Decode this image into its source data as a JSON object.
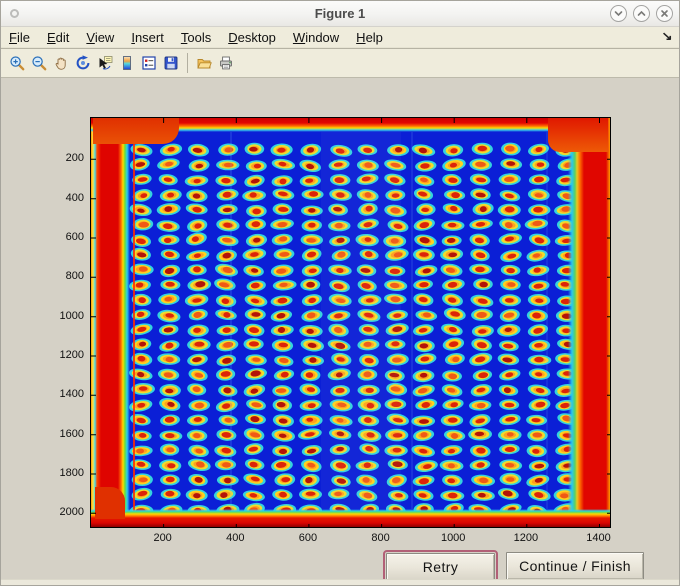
{
  "window": {
    "title": "Figure 1",
    "controls": {
      "menu": "window-menu",
      "minimize": "chevron-down",
      "maximize": "chevron-up",
      "close": "x"
    }
  },
  "menubar": {
    "items": [
      {
        "label": "File"
      },
      {
        "label": "Edit"
      },
      {
        "label": "View"
      },
      {
        "label": "Insert"
      },
      {
        "label": "Tools"
      },
      {
        "label": "Desktop"
      },
      {
        "label": "Window"
      },
      {
        "label": "Help"
      }
    ],
    "dock_arrow": "↘"
  },
  "toolbar": {
    "icons": [
      "Zoom In",
      "Zoom Out",
      "Pan",
      "Rotate 3D",
      "Data Cursor",
      "Insert Colorbar",
      "Insert Legend",
      "Save Figure",
      "Open File",
      "Print Figure"
    ]
  },
  "chart_data": {
    "type": "heatmap",
    "title": "",
    "xlabel": "",
    "ylabel": "",
    "x_ticks": [
      200,
      400,
      600,
      800,
      1000,
      1200,
      1400
    ],
    "y_ticks": [
      200,
      400,
      600,
      800,
      1000,
      1200,
      1400,
      1600,
      1800,
      2000
    ],
    "xlim": [
      1,
      1435
    ],
    "ylim": [
      1,
      2090
    ],
    "grid_on": false,
    "legend": "none",
    "description": "Microarray scan shown with jet colormap: deep blue field, saturated red bands along all four image edges, and a regular 16-column by 25-row grid of spots, each with a red/orange core, yellow ring and cyan halo.",
    "grid": {
      "cols": 16,
      "rows": 25,
      "x_first_unit": 139,
      "x_pitch_unit": 78,
      "y_first_unit": 163,
      "y_pitch_unit": 76
    },
    "colors": {
      "field_blue": "#0b1fd6",
      "halo_cyan": "#38e2df",
      "ring_yellow": "#f0dd2c",
      "ring_orange": "#ff9a1e",
      "core_red": "#dc2408",
      "core_dark_red": "#b31407",
      "core_orange": "#f05a14",
      "edge_red": "#e00600",
      "figure_background": "#d5d1c6",
      "chrome_beige": "#efecdc"
    }
  },
  "buttons": {
    "retry": "Retry",
    "continue": "Continue / Finish"
  }
}
